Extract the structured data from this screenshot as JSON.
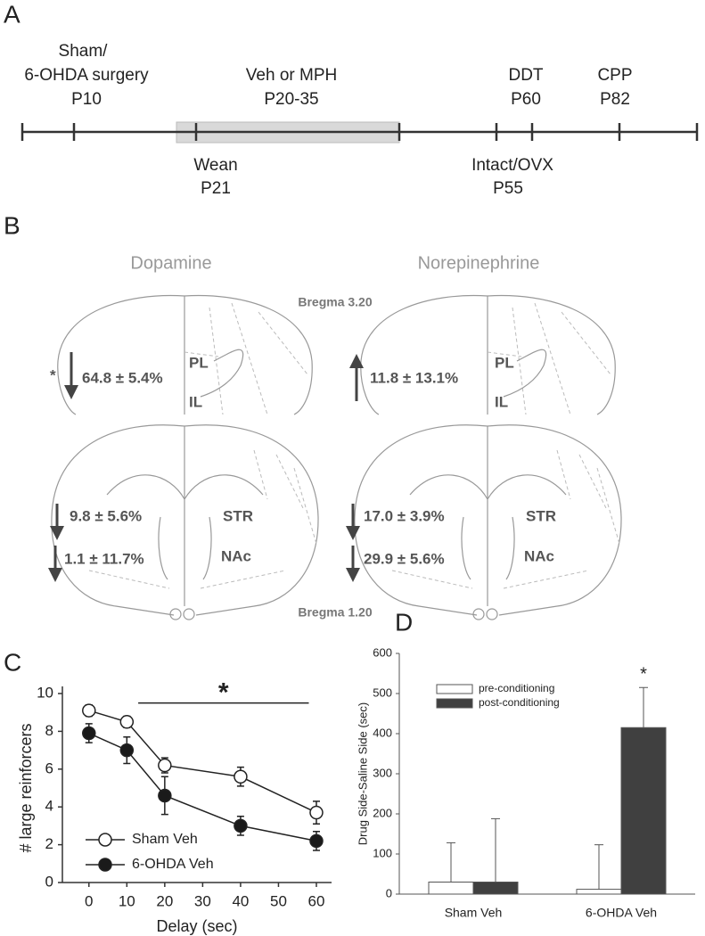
{
  "panel_a": {
    "label": "A",
    "above": [
      [
        "Sham/",
        "6-OHDA surgery",
        "P10"
      ],
      [
        "Veh or MPH",
        "P20-35"
      ],
      [
        "DDT",
        "P60"
      ],
      [
        "CPP",
        "P82"
      ]
    ],
    "below": [
      [
        "Wean",
        "P21"
      ],
      [
        "Intact/OVX",
        "P55"
      ]
    ]
  },
  "panel_b": {
    "label": "B",
    "titles": [
      "Dopamine",
      "Norepinephrine"
    ],
    "bregma": [
      "Bregma 3.20",
      "Bregma 1.20"
    ],
    "significance": "*",
    "regions": [
      "PL",
      "IL",
      "STR",
      "NAc"
    ],
    "dopamine": {
      "pfc": "64.8 ± 5.4%",
      "striatum": "9.8 ± 5.6%",
      "nac": "1.1 ± 11.7%"
    },
    "norepinephrine": {
      "pfc": "11.8 ± 13.1%",
      "striatum": "17.0 ± 3.9%",
      "nac": "29.9 ± 5.6%"
    }
  },
  "chart_data": [
    {
      "type": "line",
      "panel": "C",
      "xlabel": "Delay (sec)",
      "ylabel": "# large reinforcers",
      "x": [
        0,
        10,
        20,
        40,
        60
      ],
      "xlim": [
        -7,
        64
      ],
      "xticks": [
        0,
        10,
        20,
        30,
        40,
        50,
        60
      ],
      "ylim": [
        0,
        10
      ],
      "yticks": [
        0,
        2,
        4,
        6,
        8,
        10
      ],
      "legend": "lower left",
      "series": [
        {
          "name": "Sham Veh",
          "color": "#ffffff",
          "values": [
            9.1,
            8.5,
            6.2,
            5.6,
            3.7
          ],
          "errors": [
            0.3,
            0.3,
            0.4,
            0.5,
            0.6
          ]
        },
        {
          "name": "6-OHDA Veh",
          "color": "#1a1a1a",
          "values": [
            7.9,
            7.0,
            4.6,
            3.0,
            2.2
          ],
          "errors": [
            0.5,
            0.7,
            1.0,
            0.5,
            0.5
          ]
        }
      ],
      "annotation": "*",
      "annotation_x": [
        13,
        58
      ],
      "annotation_y": 9.5
    },
    {
      "type": "bar",
      "panel": "D",
      "ylabel": "Drug Side-Saline Side (sec)",
      "categories": [
        "Sham Veh",
        "6-OHDA Veh"
      ],
      "ylim": [
        0,
        600
      ],
      "yticks": [
        0,
        100,
        200,
        300,
        400,
        500,
        600
      ],
      "legend": "upper left",
      "series": [
        {
          "name": "pre-conditioning",
          "color": "#ffffff",
          "values": [
            30,
            12
          ],
          "errors": [
            98,
            111
          ]
        },
        {
          "name": "post-conditioning",
          "color": "#404040",
          "values": [
            30,
            415
          ],
          "errors": [
            158,
            100
          ]
        }
      ],
      "annotation": "*"
    }
  ]
}
